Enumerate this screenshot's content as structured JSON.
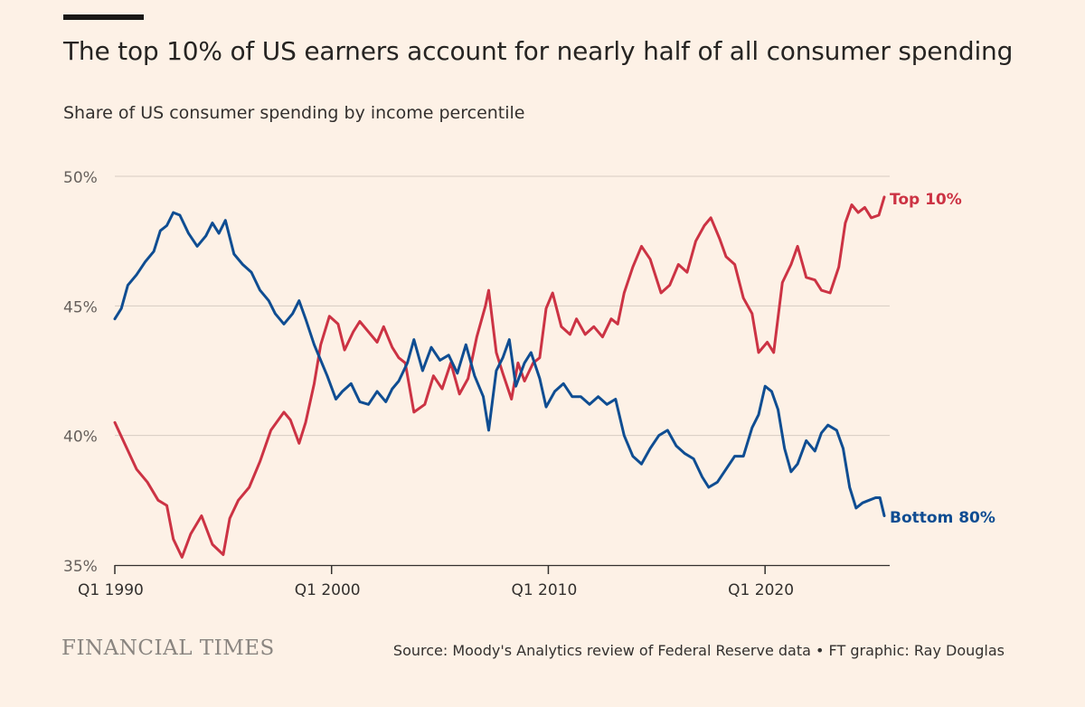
{
  "header": {
    "title": "The top 10% of US earners account for nearly half of all consumer spending",
    "subtitle": "Share of US consumer spending by income percentile"
  },
  "footer": {
    "logo_text": "FINANCIAL TIMES",
    "source": "Source: Moody's Analytics review of Federal Reserve data • FT graphic: Ray Douglas"
  },
  "colors": {
    "background": "#fdf1e6",
    "top10": "#cc3344",
    "bottom80": "#0f4d92",
    "grid": "#d6ccc2"
  },
  "chart_data": {
    "type": "line",
    "xlim": [
      1990.0,
      2025.75
    ],
    "ylim": [
      35,
      50
    ],
    "yticks": [
      35,
      40,
      45,
      50
    ],
    "ytick_labels": [
      "35%",
      "40%",
      "45%",
      "50%"
    ],
    "xticks": [
      1990,
      2000,
      2010,
      2020
    ],
    "xtick_labels": [
      "Q1 1990",
      "Q1 2000",
      "Q1 2010",
      "Q1 2020"
    ],
    "grid": true,
    "legend": "direct labels at right end of lines",
    "series": [
      {
        "name": "Top 10%",
        "points": [
          [
            1990.0,
            40.5
          ],
          [
            1990.5,
            39.6
          ],
          [
            1991.0,
            38.7
          ],
          [
            1991.5,
            38.2
          ],
          [
            1992.0,
            37.5
          ],
          [
            1992.4,
            37.3
          ],
          [
            1992.7,
            36.0
          ],
          [
            1993.1,
            35.3
          ],
          [
            1993.5,
            36.2
          ],
          [
            1994.0,
            36.9
          ],
          [
            1994.5,
            35.8
          ],
          [
            1995.0,
            35.4
          ],
          [
            1995.3,
            36.8
          ],
          [
            1995.7,
            37.5
          ],
          [
            1996.2,
            38.0
          ],
          [
            1996.7,
            39.0
          ],
          [
            1997.2,
            40.2
          ],
          [
            1997.8,
            40.9
          ],
          [
            1998.1,
            40.6
          ],
          [
            1998.5,
            39.7
          ],
          [
            1998.8,
            40.5
          ],
          [
            1999.2,
            42.0
          ],
          [
            1999.5,
            43.5
          ],
          [
            1999.9,
            44.6
          ],
          [
            2000.3,
            44.3
          ],
          [
            2000.6,
            43.3
          ],
          [
            2001.0,
            44.0
          ],
          [
            2001.3,
            44.4
          ],
          [
            2001.7,
            44.0
          ],
          [
            2002.1,
            43.6
          ],
          [
            2002.4,
            44.2
          ],
          [
            2002.8,
            43.4
          ],
          [
            2003.1,
            43.0
          ],
          [
            2003.4,
            42.8
          ],
          [
            2003.8,
            40.9
          ],
          [
            2004.3,
            41.2
          ],
          [
            2004.7,
            42.3
          ],
          [
            2005.1,
            41.8
          ],
          [
            2005.5,
            42.8
          ],
          [
            2005.9,
            41.6
          ],
          [
            2006.3,
            42.2
          ],
          [
            2006.7,
            43.8
          ],
          [
            2007.1,
            45.0
          ],
          [
            2007.25,
            45.6
          ],
          [
            2007.6,
            43.2
          ],
          [
            2007.9,
            42.4
          ],
          [
            2008.3,
            41.4
          ],
          [
            2008.6,
            42.8
          ],
          [
            2008.9,
            42.1
          ],
          [
            2009.3,
            42.8
          ],
          [
            2009.6,
            43.0
          ],
          [
            2009.9,
            44.9
          ],
          [
            2010.2,
            45.5
          ],
          [
            2010.6,
            44.2
          ],
          [
            2011.0,
            43.9
          ],
          [
            2011.3,
            44.5
          ],
          [
            2011.7,
            43.9
          ],
          [
            2012.1,
            44.2
          ],
          [
            2012.5,
            43.8
          ],
          [
            2012.9,
            44.5
          ],
          [
            2013.2,
            44.3
          ],
          [
            2013.5,
            45.5
          ],
          [
            2013.9,
            46.5
          ],
          [
            2014.3,
            47.3
          ],
          [
            2014.7,
            46.8
          ],
          [
            2015.2,
            45.5
          ],
          [
            2015.6,
            45.8
          ],
          [
            2016.0,
            46.6
          ],
          [
            2016.4,
            46.3
          ],
          [
            2016.8,
            47.5
          ],
          [
            2017.2,
            48.1
          ],
          [
            2017.5,
            48.4
          ],
          [
            2017.9,
            47.6
          ],
          [
            2018.2,
            46.9
          ],
          [
            2018.6,
            46.6
          ],
          [
            2019.0,
            45.3
          ],
          [
            2019.4,
            44.7
          ],
          [
            2019.7,
            43.2
          ],
          [
            2020.1,
            43.6
          ],
          [
            2020.4,
            43.2
          ],
          [
            2020.8,
            45.9
          ],
          [
            2021.2,
            46.6
          ],
          [
            2021.5,
            47.3
          ],
          [
            2021.9,
            46.1
          ],
          [
            2022.3,
            46.0
          ],
          [
            2022.6,
            45.6
          ],
          [
            2023.0,
            45.5
          ],
          [
            2023.4,
            46.5
          ],
          [
            2023.7,
            48.2
          ],
          [
            2024.0,
            48.9
          ],
          [
            2024.3,
            48.6
          ],
          [
            2024.6,
            48.8
          ],
          [
            2024.9,
            48.4
          ],
          [
            2025.25,
            48.5
          ],
          [
            2025.5,
            49.2
          ]
        ]
      },
      {
        "name": "Bottom 80%",
        "points": [
          [
            1990.0,
            44.5
          ],
          [
            1990.3,
            44.9
          ],
          [
            1990.6,
            45.8
          ],
          [
            1991.0,
            46.2
          ],
          [
            1991.4,
            46.7
          ],
          [
            1991.8,
            47.1
          ],
          [
            1992.1,
            47.9
          ],
          [
            1992.4,
            48.1
          ],
          [
            1992.7,
            48.6
          ],
          [
            1993.0,
            48.5
          ],
          [
            1993.4,
            47.8
          ],
          [
            1993.8,
            47.3
          ],
          [
            1994.2,
            47.7
          ],
          [
            1994.5,
            48.2
          ],
          [
            1994.8,
            47.8
          ],
          [
            1995.1,
            48.3
          ],
          [
            1995.5,
            47.0
          ],
          [
            1995.9,
            46.6
          ],
          [
            1996.3,
            46.3
          ],
          [
            1996.7,
            45.6
          ],
          [
            1997.1,
            45.2
          ],
          [
            1997.4,
            44.7
          ],
          [
            1997.8,
            44.3
          ],
          [
            1998.2,
            44.7
          ],
          [
            1998.5,
            45.2
          ],
          [
            1998.8,
            44.5
          ],
          [
            1999.2,
            43.5
          ],
          [
            1999.5,
            42.9
          ],
          [
            1999.8,
            42.3
          ],
          [
            2000.2,
            41.4
          ],
          [
            2000.5,
            41.7
          ],
          [
            2000.9,
            42.0
          ],
          [
            2001.3,
            41.3
          ],
          [
            2001.7,
            41.2
          ],
          [
            2002.1,
            41.7
          ],
          [
            2002.5,
            41.3
          ],
          [
            2002.8,
            41.8
          ],
          [
            2003.1,
            42.1
          ],
          [
            2003.5,
            42.8
          ],
          [
            2003.8,
            43.7
          ],
          [
            2004.2,
            42.5
          ],
          [
            2004.6,
            43.4
          ],
          [
            2005.0,
            42.9
          ],
          [
            2005.4,
            43.1
          ],
          [
            2005.8,
            42.4
          ],
          [
            2006.2,
            43.5
          ],
          [
            2006.6,
            42.3
          ],
          [
            2007.0,
            41.5
          ],
          [
            2007.25,
            40.2
          ],
          [
            2007.6,
            42.5
          ],
          [
            2007.9,
            43.0
          ],
          [
            2008.2,
            43.7
          ],
          [
            2008.5,
            41.9
          ],
          [
            2008.9,
            42.8
          ],
          [
            2009.2,
            43.2
          ],
          [
            2009.6,
            42.2
          ],
          [
            2009.9,
            41.1
          ],
          [
            2010.3,
            41.7
          ],
          [
            2010.7,
            42.0
          ],
          [
            2011.1,
            41.5
          ],
          [
            2011.5,
            41.5
          ],
          [
            2011.9,
            41.2
          ],
          [
            2012.3,
            41.5
          ],
          [
            2012.7,
            41.2
          ],
          [
            2013.1,
            41.4
          ],
          [
            2013.5,
            40.0
          ],
          [
            2013.9,
            39.2
          ],
          [
            2014.3,
            38.9
          ],
          [
            2014.7,
            39.5
          ],
          [
            2015.1,
            40.0
          ],
          [
            2015.5,
            40.2
          ],
          [
            2015.9,
            39.6
          ],
          [
            2016.3,
            39.3
          ],
          [
            2016.7,
            39.1
          ],
          [
            2017.1,
            38.4
          ],
          [
            2017.4,
            38.0
          ],
          [
            2017.8,
            38.2
          ],
          [
            2018.2,
            38.7
          ],
          [
            2018.6,
            39.2
          ],
          [
            2019.0,
            39.2
          ],
          [
            2019.4,
            40.3
          ],
          [
            2019.7,
            40.8
          ],
          [
            2020.0,
            41.9
          ],
          [
            2020.3,
            41.7
          ],
          [
            2020.6,
            41.0
          ],
          [
            2020.9,
            39.5
          ],
          [
            2021.2,
            38.6
          ],
          [
            2021.5,
            38.9
          ],
          [
            2021.9,
            39.8
          ],
          [
            2022.3,
            39.4
          ],
          [
            2022.6,
            40.1
          ],
          [
            2022.9,
            40.4
          ],
          [
            2023.3,
            40.2
          ],
          [
            2023.6,
            39.5
          ],
          [
            2023.9,
            38.0
          ],
          [
            2024.2,
            37.2
          ],
          [
            2024.5,
            37.4
          ],
          [
            2024.8,
            37.5
          ],
          [
            2025.1,
            37.6
          ],
          [
            2025.3,
            37.6
          ],
          [
            2025.5,
            36.9
          ]
        ]
      }
    ]
  }
}
